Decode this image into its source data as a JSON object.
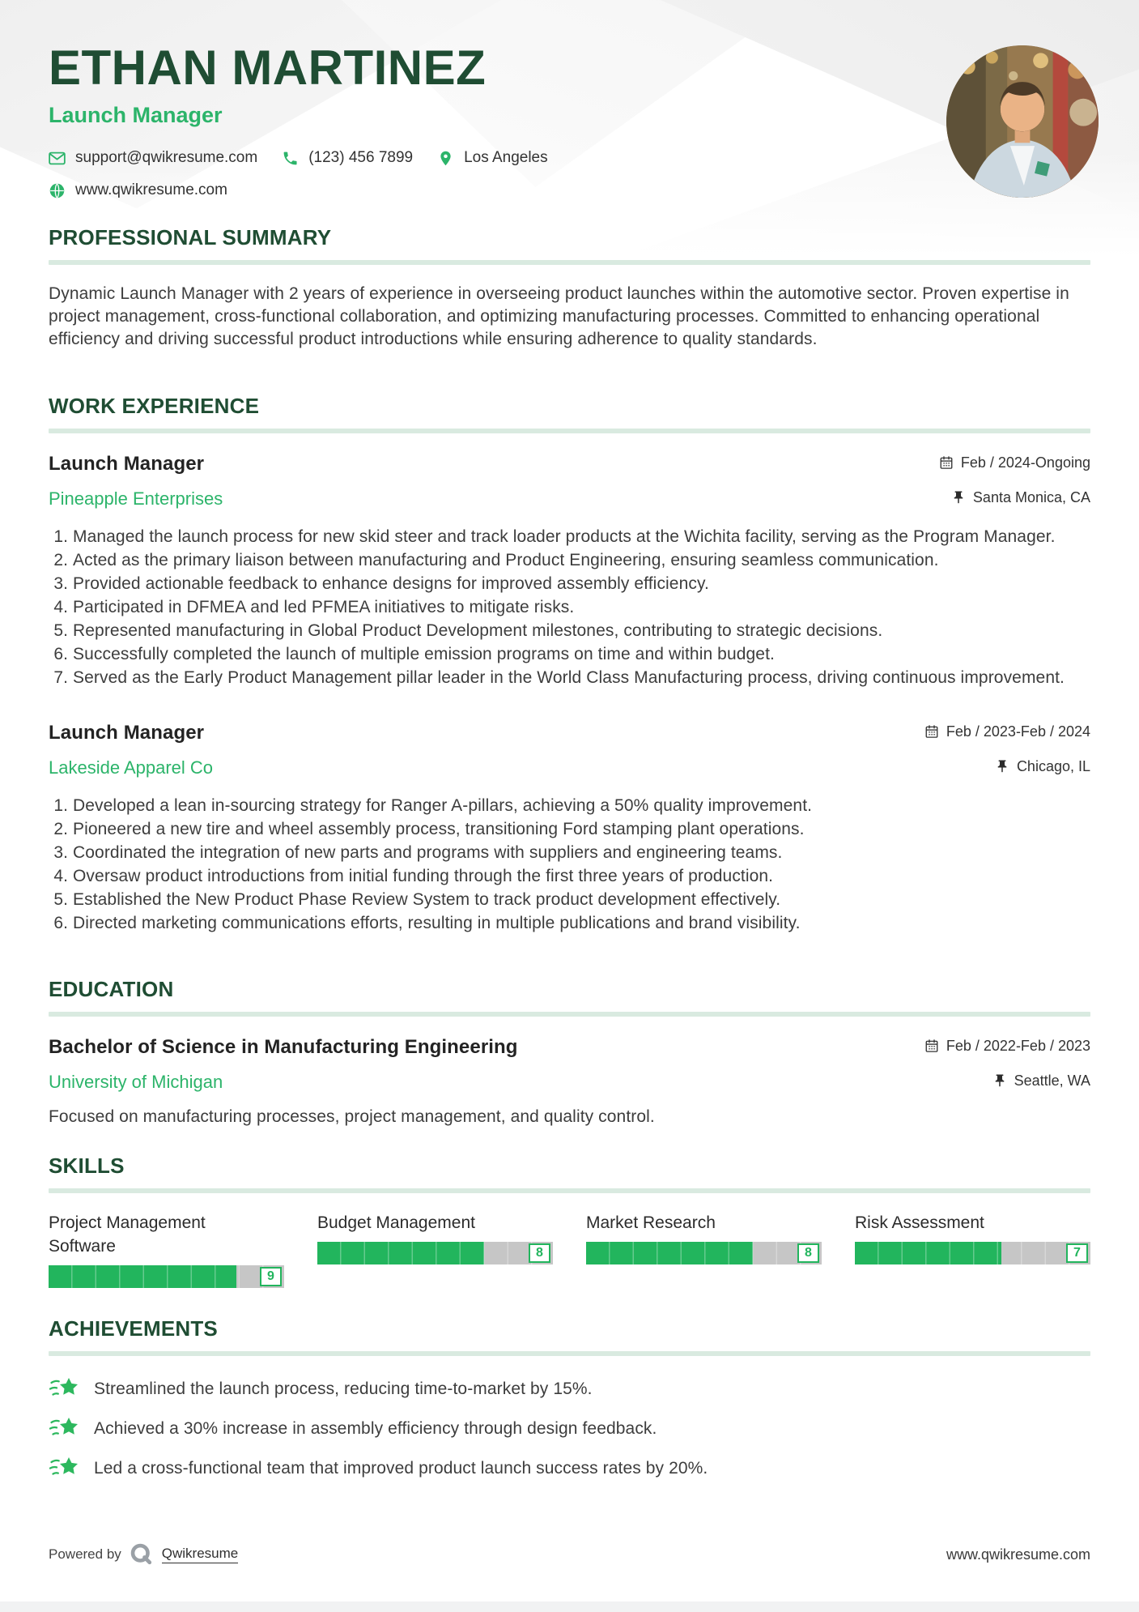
{
  "header": {
    "name": "ETHAN MARTINEZ",
    "title": "Launch Manager",
    "contacts": {
      "email": "support@qwikresume.com",
      "phone": "(123) 456 7899",
      "location": "Los Angeles",
      "website": "www.qwikresume.com"
    }
  },
  "sections": {
    "summary": {
      "heading": "PROFESSIONAL SUMMARY",
      "text": "Dynamic Launch Manager with 2 years of experience in overseeing product launches within the automotive sector. Proven expertise in project management, cross-functional collaboration, and optimizing manufacturing processes. Committed to enhancing operational efficiency and driving successful product introductions while ensuring adherence to quality standards."
    },
    "work": {
      "heading": "WORK EXPERIENCE",
      "jobs": [
        {
          "title": "Launch Manager",
          "company": "Pineapple Enterprises",
          "date": "Feb / 2024-Ongoing",
          "location": "Santa Monica, CA",
          "bullets": [
            "Managed the launch process for new skid steer and track loader products at the Wichita facility, serving as the Program Manager.",
            "Acted as the primary liaison between manufacturing and Product Engineering, ensuring seamless communication.",
            "Provided actionable feedback to enhance designs for improved assembly efficiency.",
            "Participated in DFMEA and led PFMEA initiatives to mitigate risks.",
            "Represented manufacturing in Global Product Development milestones, contributing to strategic decisions.",
            "Successfully completed the launch of multiple emission programs on time and within budget.",
            "Served as the Early Product Management pillar leader in the World Class Manufacturing process, driving continuous improvement."
          ]
        },
        {
          "title": "Launch Manager",
          "company": "Lakeside Apparel Co",
          "date": "Feb / 2023-Feb / 2024",
          "location": "Chicago, IL",
          "bullets": [
            "Developed a lean in-sourcing strategy for Ranger A-pillars, achieving a 50% quality improvement.",
            "Pioneered a new tire and wheel assembly process, transitioning Ford stamping plant operations.",
            "Coordinated the integration of new parts and programs with suppliers and engineering teams.",
            "Oversaw product introductions from initial funding through the first three years of production.",
            "Established the New Product Phase Review System to track product development effectively.",
            "Directed marketing communications efforts, resulting in multiple publications and brand visibility."
          ]
        }
      ]
    },
    "education": {
      "heading": "EDUCATION",
      "degree": "Bachelor of Science in Manufacturing Engineering",
      "school": "University of Michigan",
      "date": "Feb / 2022-Feb / 2023",
      "location": "Seattle, WA",
      "description": "Focused on manufacturing processes, project management, and quality control."
    },
    "skills": {
      "heading": "SKILLS",
      "max": 10,
      "items": [
        {
          "label": "Project Management Software",
          "value": 9
        },
        {
          "label": "Budget Management",
          "value": 8
        },
        {
          "label": "Market Research",
          "value": 8
        },
        {
          "label": "Risk Assessment",
          "value": 7
        }
      ]
    },
    "achievements": {
      "heading": "ACHIEVEMENTS",
      "items": [
        "Streamlined the launch process, reducing time-to-market by 15%.",
        "Achieved a 30% increase in assembly efficiency through design feedback.",
        "Led a cross-functional team that improved product launch success rates by 20%."
      ]
    }
  },
  "footer": {
    "powered_by": "Powered by",
    "brand": "Qwikresume",
    "website": "www.qwikresume.com"
  },
  "colors": {
    "dark_green": "#1f4d33",
    "accent_green": "#2cb46a",
    "bar_green": "#22b55d",
    "underline_green": "#d9eae0",
    "bar_gray": "#c6c6c6",
    "body_text": "#3d3d3d"
  }
}
